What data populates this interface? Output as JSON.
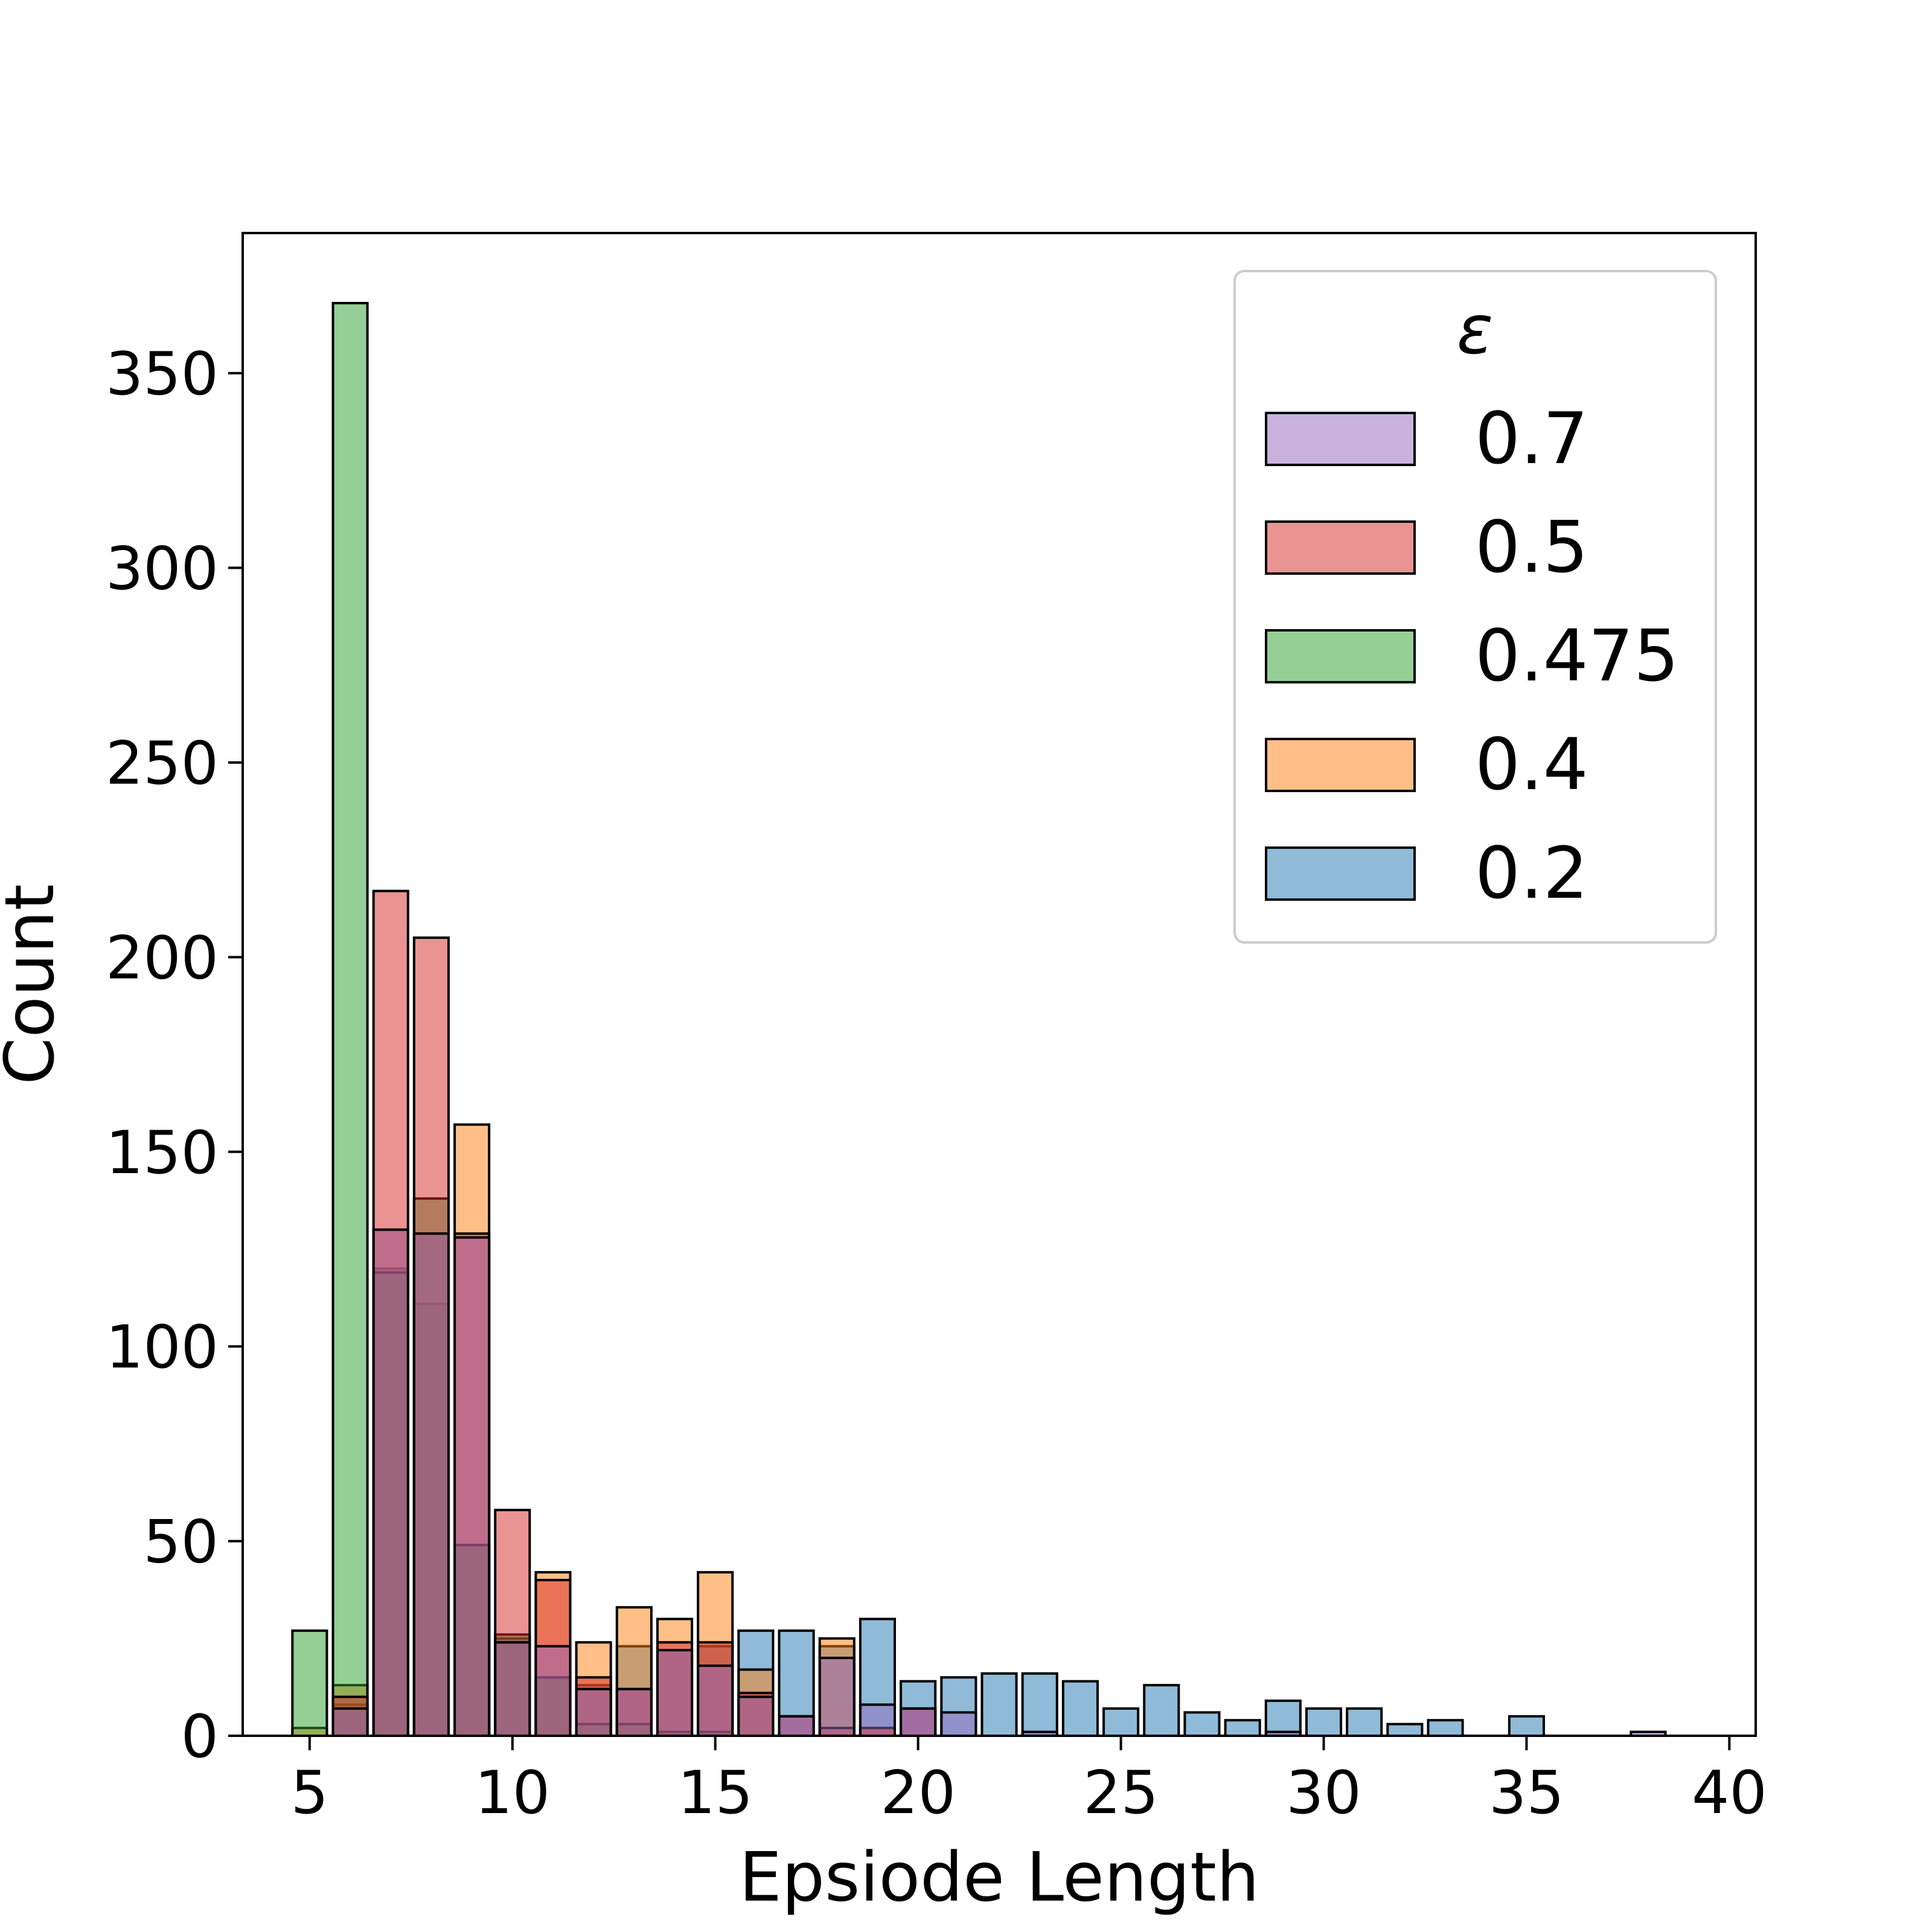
{
  "chart_data": {
    "type": "bar",
    "xlabel": "Epsiode Length",
    "ylabel": "Count",
    "xlim": [
      3.35,
      40.65
    ],
    "ylim": [
      0,
      386
    ],
    "xticks": [
      5,
      10,
      15,
      20,
      25,
      30,
      35,
      40
    ],
    "yticks": [
      0,
      50,
      100,
      150,
      200,
      250,
      300,
      350
    ],
    "grid": false,
    "legend_title": "ε",
    "legend_position": "top-right",
    "bin_width": 0.85,
    "series": [
      {
        "name": "0.2",
        "color": "#1f77b4",
        "x": [
          6,
          7,
          8,
          9,
          10,
          11,
          12,
          13,
          14,
          15,
          16,
          17,
          18,
          19,
          20,
          21,
          22,
          23,
          24,
          25,
          26,
          27,
          28,
          29,
          30,
          31,
          32,
          33,
          34,
          35
        ],
        "values": [
          8,
          120,
          111,
          49,
          25,
          15,
          13,
          23,
          22,
          23,
          27,
          27,
          23,
          30,
          14,
          15,
          16,
          16,
          14,
          7,
          13,
          6,
          4,
          9,
          7,
          7,
          3,
          4,
          0,
          5
        ]
      },
      {
        "name": "0.4",
        "color": "#ff7f0e",
        "x": [
          5,
          6,
          7,
          8,
          9,
          10,
          11,
          12,
          13,
          14,
          15,
          16,
          17,
          18,
          19
        ],
        "values": [
          2,
          13,
          130,
          129,
          157,
          24,
          42,
          24,
          33,
          30,
          42,
          17,
          0,
          25,
          2
        ]
      },
      {
        "name": "0.475",
        "color": "#2ca02c",
        "x": [
          5,
          6,
          7,
          8,
          9,
          10,
          11,
          12,
          13,
          14,
          15
        ],
        "values": [
          27,
          368,
          119,
          138,
          49,
          26,
          15,
          3,
          3,
          1,
          1
        ]
      },
      {
        "name": "0.5",
        "color": "#d62728",
        "x": [
          6,
          7,
          8,
          9,
          10,
          11,
          12,
          13,
          14,
          15,
          16,
          17,
          18,
          19,
          20
        ],
        "values": [
          10,
          217,
          205,
          129,
          58,
          40,
          15,
          12,
          24,
          24,
          11,
          5,
          2,
          2,
          7
        ]
      },
      {
        "name": "0.7",
        "color": "#9467bd",
        "x": [
          6,
          7,
          8,
          9,
          10,
          11,
          12,
          13,
          14,
          15,
          16,
          17,
          18,
          19,
          20,
          21,
          22,
          23,
          24,
          25,
          26,
          27,
          28,
          29,
          30,
          31,
          32,
          33,
          34,
          35,
          36,
          37,
          38
        ],
        "values": [
          7,
          130,
          129,
          128,
          24,
          23,
          12,
          12,
          22,
          18,
          10,
          5,
          20,
          8,
          7,
          6,
          0,
          1,
          0,
          0,
          0,
          0,
          0,
          1,
          0,
          0,
          0,
          0,
          0,
          0,
          0,
          0,
          1
        ]
      }
    ],
    "legend_order": [
      "0.7",
      "0.5",
      "0.475",
      "0.4",
      "0.2"
    ]
  }
}
